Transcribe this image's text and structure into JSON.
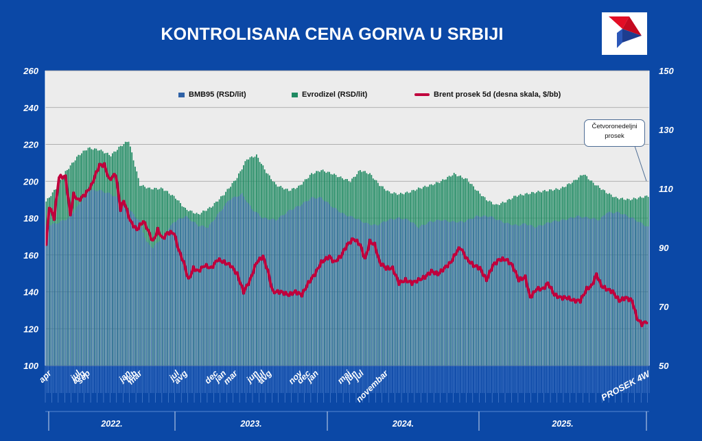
{
  "title": "KONTROLISANA CENA GORIVA U SRBIJI",
  "callout": {
    "line1": "Četvoronedeljni",
    "line2": "prosek"
  },
  "legend": [
    {
      "label": "BMB95 (RSD/lit)",
      "color": "#2f62a6",
      "kind": "bar"
    },
    {
      "label": "Evrodizel (RSD/lit)",
      "color": "#1f8a62",
      "kind": "bar"
    },
    {
      "label": "Brent prosek  5d (desna skala, $/bb)",
      "color": "#c0003c",
      "kind": "line"
    }
  ],
  "colors": {
    "background": "#0b48a6",
    "plot_area": "#ececec",
    "bmb95": "#2f62a6",
    "evrodizel": "#1f8a62",
    "brent": "#c0003c",
    "logo_red": "#e30d25",
    "logo_blue": "#1d3d8f"
  },
  "chart_data": {
    "type": "bar",
    "grid": true,
    "legend_position": "top",
    "y_left": {
      "min": 100,
      "max": 260,
      "ticks": [
        100,
        120,
        140,
        160,
        180,
        200,
        220,
        240,
        260
      ]
    },
    "y_right": {
      "min": 50,
      "max": 150,
      "ticks": [
        50,
        70,
        90,
        110,
        130,
        150
      ]
    },
    "month_labels": [
      "apr",
      "jul",
      "avg",
      "sep",
      "jan",
      "feb",
      "mar",
      "jul",
      "avg",
      "dec",
      "jan",
      "mar",
      "jun",
      "jul",
      "avg",
      "nov",
      "dec",
      "jan",
      "maj",
      "jun",
      "jul",
      "novembar",
      "PROSEK 4W"
    ],
    "year_labels": [
      "2022.",
      "2023.",
      "2024.",
      "2025."
    ],
    "period_note": "weekly, Apr 2022 – Dec 2025",
    "series": [
      {
        "name": "BMB95 (RSD/lit)",
        "axis": "left",
        "keys": [
          [
            0,
            176
          ],
          [
            6,
            177
          ],
          [
            14,
            180
          ],
          [
            20,
            187
          ],
          [
            26,
            195
          ],
          [
            33,
            195
          ],
          [
            40,
            193
          ],
          [
            46,
            190
          ],
          [
            52,
            184
          ],
          [
            58,
            178
          ],
          [
            62,
            167
          ],
          [
            66,
            164
          ],
          [
            72,
            170
          ],
          [
            79,
            178
          ],
          [
            86,
            181
          ],
          [
            94,
            176
          ],
          [
            100,
            175
          ],
          [
            107,
            183
          ],
          [
            113,
            190
          ],
          [
            121,
            193
          ],
          [
            127,
            185
          ],
          [
            134,
            180
          ],
          [
            142,
            179
          ],
          [
            150,
            184
          ],
          [
            157,
            187
          ],
          [
            164,
            191
          ],
          [
            170,
            191
          ],
          [
            177,
            186
          ],
          [
            184,
            182
          ],
          [
            191,
            180
          ],
          [
            198,
            177
          ],
          [
            204,
            176
          ],
          [
            211,
            179
          ],
          [
            218,
            180
          ],
          [
            224,
            179
          ],
          [
            230,
            175
          ],
          [
            237,
            178
          ],
          [
            244,
            179
          ],
          [
            251,
            178
          ],
          [
            258,
            178
          ],
          [
            266,
            181
          ],
          [
            274,
            181
          ],
          [
            279,
            179
          ],
          [
            285,
            177
          ],
          [
            291,
            176
          ],
          [
            296,
            177
          ],
          [
            302,
            175
          ],
          [
            312,
            178
          ],
          [
            320,
            179
          ],
          [
            328,
            181
          ],
          [
            336,
            180
          ],
          [
            342,
            179
          ],
          [
            346,
            183
          ],
          [
            354,
            183
          ],
          [
            362,
            180
          ],
          [
            372,
            175
          ]
        ]
      },
      {
        "name": "Evrodizel (RSD/lit)",
        "axis": "left",
        "keys": [
          [
            0,
            189
          ],
          [
            6,
            196
          ],
          [
            12,
            205
          ],
          [
            20,
            214
          ],
          [
            26,
            218
          ],
          [
            33,
            217
          ],
          [
            40,
            214
          ],
          [
            46,
            219
          ],
          [
            51,
            222
          ],
          [
            58,
            198
          ],
          [
            64,
            196
          ],
          [
            72,
            196
          ],
          [
            80,
            191
          ],
          [
            86,
            185
          ],
          [
            94,
            182
          ],
          [
            102,
            186
          ],
          [
            110,
            193
          ],
          [
            118,
            202
          ],
          [
            124,
            212
          ],
          [
            130,
            214
          ],
          [
            136,
            205
          ],
          [
            142,
            198
          ],
          [
            150,
            195
          ],
          [
            156,
            197
          ],
          [
            164,
            204
          ],
          [
            170,
            206
          ],
          [
            177,
            204
          ],
          [
            182,
            202
          ],
          [
            188,
            200
          ],
          [
            194,
            206
          ],
          [
            200,
            204
          ],
          [
            206,
            198
          ],
          [
            212,
            194
          ],
          [
            218,
            193
          ],
          [
            224,
            194
          ],
          [
            230,
            196
          ],
          [
            238,
            198
          ],
          [
            244,
            200
          ],
          [
            252,
            204
          ],
          [
            260,
            201
          ],
          [
            266,
            195
          ],
          [
            272,
            190
          ],
          [
            278,
            187
          ],
          [
            284,
            189
          ],
          [
            290,
            192
          ],
          [
            296,
            193
          ],
          [
            302,
            194
          ],
          [
            310,
            195
          ],
          [
            318,
            196
          ],
          [
            326,
            200
          ],
          [
            332,
            204
          ],
          [
            338,
            199
          ],
          [
            346,
            194
          ],
          [
            352,
            191
          ],
          [
            360,
            190
          ],
          [
            372,
            192
          ]
        ]
      },
      {
        "name": "Brent prosek  5d (desna skala, $/bb)",
        "axis": "right",
        "keys": [
          [
            0,
            91
          ],
          [
            2,
            104
          ],
          [
            5,
            100
          ],
          [
            8,
            114
          ],
          [
            12,
            114
          ],
          [
            15,
            101
          ],
          [
            17,
            108
          ],
          [
            20,
            106
          ],
          [
            24,
            108
          ],
          [
            28,
            111
          ],
          [
            30,
            114
          ],
          [
            33,
            118
          ],
          [
            36,
            118
          ],
          [
            39,
            113
          ],
          [
            43,
            115
          ],
          [
            46,
            103
          ],
          [
            48,
            106
          ],
          [
            52,
            99
          ],
          [
            56,
            96
          ],
          [
            60,
            99
          ],
          [
            62,
            97
          ],
          [
            66,
            92
          ],
          [
            69,
            96
          ],
          [
            72,
            93
          ],
          [
            75,
            95
          ],
          [
            79,
            95
          ],
          [
            82,
            89
          ],
          [
            85,
            85
          ],
          [
            88,
            79
          ],
          [
            91,
            83
          ],
          [
            94,
            82
          ],
          [
            98,
            84
          ],
          [
            102,
            83
          ],
          [
            106,
            86
          ],
          [
            110,
            85
          ],
          [
            114,
            84
          ],
          [
            118,
            81
          ],
          [
            122,
            75
          ],
          [
            126,
            79
          ],
          [
            130,
            85
          ],
          [
            134,
            87
          ],
          [
            137,
            82
          ],
          [
            140,
            75
          ],
          [
            145,
            75
          ],
          [
            150,
            74
          ],
          [
            154,
            75
          ],
          [
            158,
            74
          ],
          [
            162,
            78
          ],
          [
            166,
            81
          ],
          [
            170,
            85
          ],
          [
            175,
            87
          ],
          [
            178,
            85
          ],
          [
            182,
            87
          ],
          [
            186,
            91
          ],
          [
            190,
            93
          ],
          [
            194,
            91
          ],
          [
            197,
            86
          ],
          [
            200,
            92
          ],
          [
            203,
            91
          ],
          [
            206,
            85
          ],
          [
            210,
            83
          ],
          [
            214,
            83
          ],
          [
            218,
            78
          ],
          [
            222,
            79
          ],
          [
            226,
            78
          ],
          [
            230,
            79
          ],
          [
            234,
            80
          ],
          [
            238,
            82
          ],
          [
            242,
            81
          ],
          [
            246,
            83
          ],
          [
            250,
            85
          ],
          [
            254,
            89
          ],
          [
            256,
            90
          ],
          [
            260,
            86
          ],
          [
            264,
            84
          ],
          [
            268,
            83
          ],
          [
            272,
            79
          ],
          [
            276,
            84
          ],
          [
            280,
            86
          ],
          [
            284,
            86
          ],
          [
            288,
            84
          ],
          [
            292,
            79
          ],
          [
            296,
            80
          ],
          [
            299,
            73
          ],
          [
            303,
            76
          ],
          [
            307,
            76
          ],
          [
            310,
            78
          ],
          [
            314,
            74
          ],
          [
            318,
            73
          ],
          [
            322,
            73
          ],
          [
            326,
            72
          ],
          [
            330,
            72
          ],
          [
            334,
            76
          ],
          [
            337,
            77
          ],
          [
            340,
            81
          ],
          [
            343,
            77
          ],
          [
            346,
            76
          ],
          [
            350,
            75
          ],
          [
            354,
            72
          ],
          [
            358,
            73
          ],
          [
            362,
            72
          ],
          [
            365,
            66
          ],
          [
            368,
            64
          ],
          [
            371,
            65
          ]
        ]
      }
    ]
  }
}
